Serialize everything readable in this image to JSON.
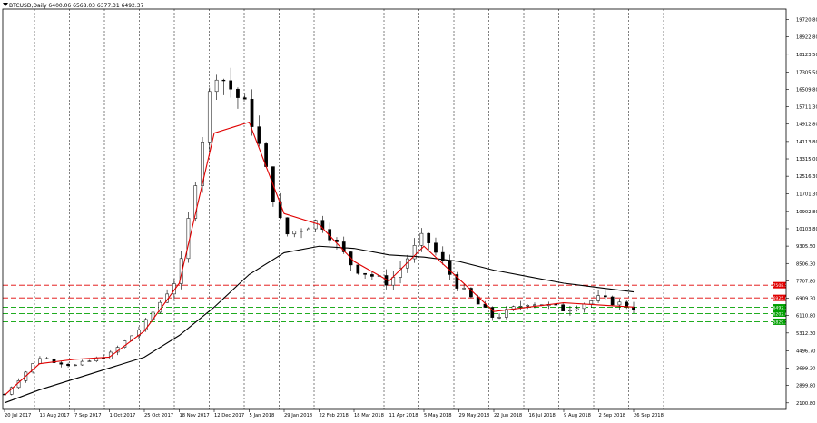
{
  "header": {
    "symbol_line": "BTCUSD,Daily  6400.06 6568.03 6377.31 6492.37"
  },
  "colors": {
    "background": "#ffffff",
    "candle": "#000000",
    "ma_fast": "#e00000",
    "ma_slow": "#000000",
    "resistance": "#e00000",
    "support": "#00a000",
    "grid": "#000000"
  },
  "chart_data": {
    "type": "candlestick",
    "title": "BTCUSD,Daily",
    "ohlc_last": {
      "open": 6400.06,
      "high": 6568.03,
      "low": 6377.31,
      "close": 6492.37
    },
    "ylim": [
      1800,
      20200
    ],
    "y_ticks": [
      "19720.80",
      "18922.80",
      "18123.50",
      "17305.50",
      "16509.80",
      "15711.30",
      "14912.80",
      "14113.80",
      "13315.00",
      "12516.30",
      "11701.30",
      "10902.80",
      "10103.80",
      "9305.50",
      "8506.30",
      "7707.80",
      "6909.30",
      "6110.80",
      "5312.30",
      "4496.70",
      "3699.20",
      "2899.80",
      "2100.80"
    ],
    "y_tick_values": [
      19720.8,
      18922.8,
      18123.5,
      17305.5,
      16509.8,
      15711.3,
      14912.8,
      14113.8,
      13315.0,
      12516.3,
      11701.3,
      10902.8,
      10103.8,
      9305.5,
      8506.3,
      7707.8,
      6909.3,
      6110.8,
      5312.3,
      4496.7,
      3699.2,
      2899.8,
      2100.8
    ],
    "x_ticks": [
      "20 Jul 2017",
      "13 Aug 2017",
      "7 Sep 2017",
      "1 Oct 2017",
      "25 Oct 2017",
      "18 Nov 2017",
      "12 Dec 2017",
      "5 Jan 2018",
      "29 Jan 2018",
      "22 Feb 2018",
      "18 Mar 2018",
      "11 Apr 2018",
      "5 May 2018",
      "29 May 2018",
      "22 Jun 2018",
      "16 Jul 2018",
      "9 Aug 2018",
      "2 Sep 2018",
      "26 Sep 2018"
    ],
    "dates": [
      "2017-07-20",
      "2017-08-13",
      "2017-09-07",
      "2017-10-01",
      "2017-10-25",
      "2017-11-18",
      "2017-12-12",
      "2018-01-05",
      "2018-01-29",
      "2018-02-22",
      "2018-03-18",
      "2018-04-11",
      "2018-05-05",
      "2018-05-29",
      "2018-06-22",
      "2018-07-16",
      "2018-08-09",
      "2018-09-02",
      "2018-09-26"
    ],
    "close_approx": [
      2500,
      4200,
      3800,
      4300,
      5700,
      8000,
      17500,
      15500,
      9800,
      10500,
      8300,
      7600,
      9800,
      7400,
      6000,
      6750,
      6400,
      6900,
      6492.37
    ],
    "ma_fast_approx": [
      2450,
      3900,
      4100,
      4200,
      5400,
      7600,
      14500,
      15000,
      10800,
      10300,
      8600,
      7700,
      9300,
      7800,
      6300,
      6500,
      6700,
      6600,
      6500
    ],
    "ma_slow_approx": [
      2100,
      2700,
      3200,
      3700,
      4200,
      5200,
      6500,
      8000,
      9000,
      9300,
      9200,
      8900,
      8800,
      8600,
      8200,
      7900,
      7600,
      7400,
      7200
    ],
    "horizontal_levels": [
      {
        "value": 7508.5,
        "label": "7508.50",
        "style": "dashed",
        "color": "red"
      },
      {
        "value": 6925.6,
        "label": "6925.60",
        "style": "dashed",
        "color": "red"
      },
      {
        "value": 6492.37,
        "label": "6492.37",
        "style": "dashed",
        "color": "green"
      },
      {
        "value": 6202.6,
        "label": "6202.60",
        "style": "dashed",
        "color": "green"
      },
      {
        "value": 5829.2,
        "label": "5829.20",
        "style": "dashed",
        "color": "green"
      }
    ],
    "grid": "vertical dashed"
  }
}
